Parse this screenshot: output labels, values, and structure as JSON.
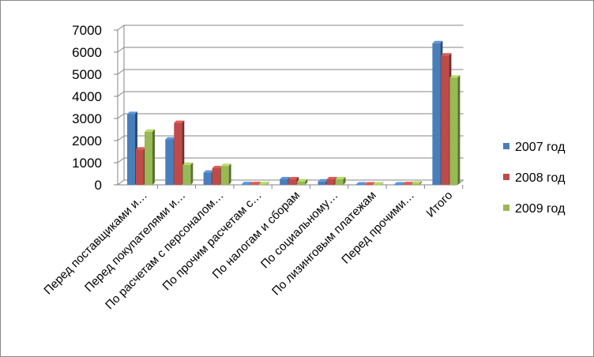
{
  "chart_data": {
    "type": "bar",
    "categories": [
      "Перед поставщиками и…",
      "Перед покупателями и…",
      "По расчетам с персоналом…",
      "По прочим расчетам с…",
      "По налогам и сборам",
      "По социальному…",
      "По лизинговым платежам",
      "Перед прочими…",
      "Итого"
    ],
    "series": [
      {
        "name": "2007 год",
        "color": "#4a7ebb",
        "values": [
          3200,
          2050,
          550,
          30,
          250,
          150,
          20,
          20,
          6400
        ]
      },
      {
        "name": "2008 год",
        "color": "#be4b48",
        "values": [
          1600,
          2800,
          750,
          30,
          250,
          250,
          20,
          30,
          5850
        ]
      },
      {
        "name": "2009 год",
        "color": "#98b954",
        "values": [
          2400,
          900,
          850,
          30,
          150,
          250,
          20,
          60,
          4850
        ]
      }
    ],
    "yticks": [
      "0",
      "1000",
      "2000",
      "3000",
      "4000",
      "5000",
      "6000",
      "7000"
    ],
    "ylim": [
      0,
      7000
    ],
    "grid": true,
    "legend_position": "right",
    "title": "",
    "xlabel": "",
    "ylabel": ""
  }
}
